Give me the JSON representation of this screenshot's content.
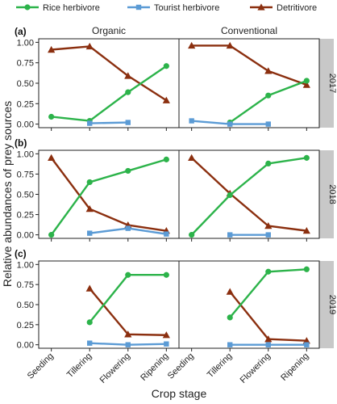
{
  "chart_data": {
    "type": "line",
    "ylabel": "Relative abundances of prey sources",
    "xlabel": "Crop stage",
    "categories": [
      "Seeding",
      "Tillering",
      "Flowering",
      "Ripening"
    ],
    "columns": [
      "Organic",
      "Conventional"
    ],
    "ylim": [
      0,
      1
    ],
    "yticks": [
      "0.00",
      "0.25",
      "0.50",
      "0.75",
      "1.00"
    ],
    "legend": {
      "placement": "top",
      "entries": [
        {
          "name": "Rice herbivore",
          "color": "#2cb34a",
          "marker": "circle"
        },
        {
          "name": "Tourist herbivore",
          "color": "#5b9bd5",
          "marker": "square"
        },
        {
          "name": "Detritivore",
          "color": "#8b2f0f",
          "marker": "triangle"
        }
      ]
    },
    "rows": [
      {
        "tag": "(a)",
        "year": "2017",
        "panels": [
          {
            "column": "Organic",
            "series": [
              {
                "name": "Rice herbivore",
                "values": [
                  0.09,
                  0.04,
                  0.39,
                  0.71
                ]
              },
              {
                "name": "Tourist herbivore",
                "values": [
                  null,
                  0.01,
                  0.02,
                  null
                ]
              },
              {
                "name": "Detritivore",
                "values": [
                  0.91,
                  0.95,
                  0.59,
                  0.29
                ]
              }
            ]
          },
          {
            "column": "Conventional",
            "series": [
              {
                "name": "Rice herbivore",
                "values": [
                  null,
                  0.02,
                  0.35,
                  0.53
                ]
              },
              {
                "name": "Tourist herbivore",
                "values": [
                  0.04,
                  0.0,
                  0.0,
                  null
                ]
              },
              {
                "name": "Detritivore",
                "values": [
                  0.96,
                  0.96,
                  0.65,
                  0.48
                ]
              }
            ]
          }
        ]
      },
      {
        "tag": "(b)",
        "year": "2018",
        "panels": [
          {
            "column": "Organic",
            "series": [
              {
                "name": "Rice herbivore",
                "values": [
                  0.0,
                  0.65,
                  0.79,
                  0.93
                ]
              },
              {
                "name": "Tourist herbivore",
                "values": [
                  null,
                  0.02,
                  0.08,
                  0.01
                ]
              },
              {
                "name": "Detritivore",
                "values": [
                  0.95,
                  0.32,
                  0.12,
                  0.05
                ]
              }
            ]
          },
          {
            "column": "Conventional",
            "series": [
              {
                "name": "Rice herbivore",
                "values": [
                  0.0,
                  0.49,
                  0.88,
                  0.95
                ]
              },
              {
                "name": "Tourist herbivore",
                "values": [
                  null,
                  0.0,
                  0.0,
                  null
                ]
              },
              {
                "name": "Detritivore",
                "values": [
                  0.95,
                  0.51,
                  0.11,
                  0.05
                ]
              }
            ]
          }
        ]
      },
      {
        "tag": "(c)",
        "year": "2019",
        "panels": [
          {
            "column": "Organic",
            "series": [
              {
                "name": "Rice herbivore",
                "values": [
                  null,
                  0.28,
                  0.87,
                  0.87
                ]
              },
              {
                "name": "Tourist herbivore",
                "values": [
                  null,
                  0.02,
                  0.0,
                  0.01
                ]
              },
              {
                "name": "Detritivore",
                "values": [
                  null,
                  0.7,
                  0.13,
                  0.12
                ]
              }
            ]
          },
          {
            "column": "Conventional",
            "series": [
              {
                "name": "Rice herbivore",
                "values": [
                  null,
                  0.34,
                  0.91,
                  0.94
                ]
              },
              {
                "name": "Tourist herbivore",
                "values": [
                  null,
                  0.0,
                  0.0,
                  0.0
                ]
              },
              {
                "name": "Detritivore",
                "values": [
                  null,
                  0.66,
                  0.07,
                  0.05
                ]
              }
            ]
          }
        ]
      }
    ],
    "colors": {
      "strip_bg": "#c8c8c8",
      "frame": "#222222"
    }
  }
}
